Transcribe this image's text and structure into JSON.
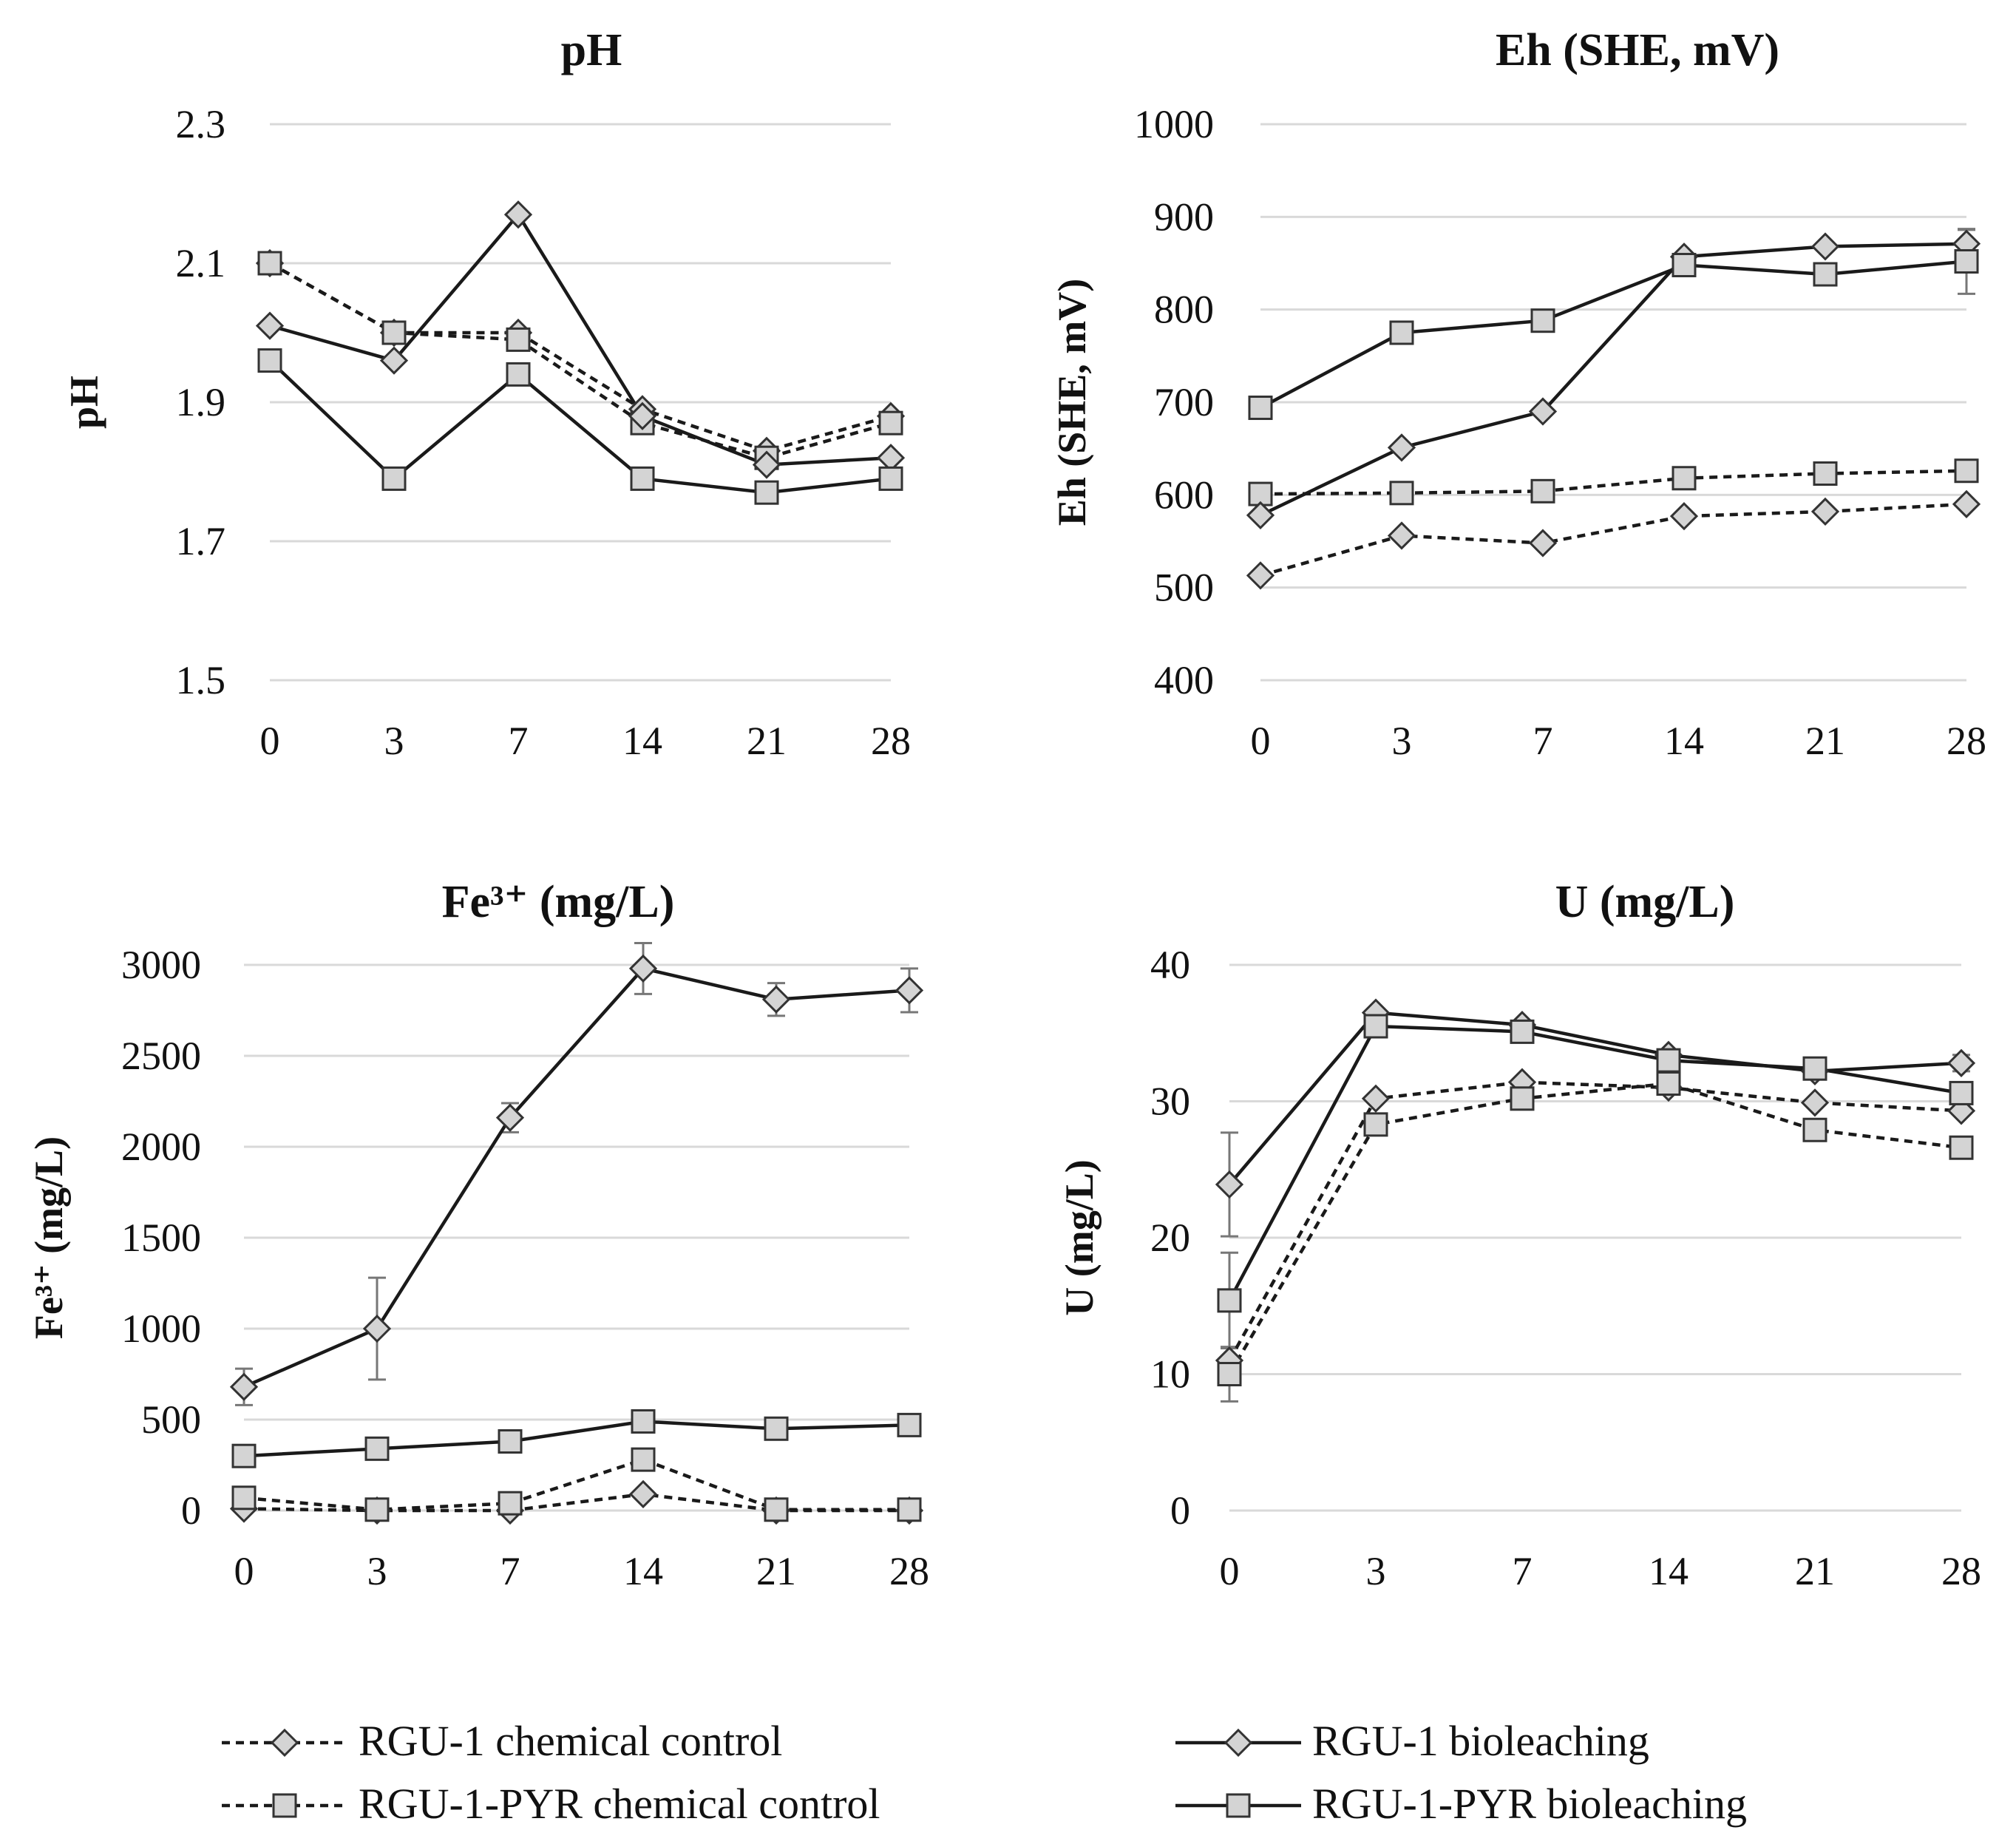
{
  "legend": [
    {
      "label": "RGU-1 chemical control",
      "line": "dashed",
      "marker": "diamond"
    },
    {
      "label": "RGU-1-PYR chemical control",
      "line": "dashed",
      "marker": "square"
    },
    {
      "label": "RGU-1 bioleaching",
      "line": "solid",
      "marker": "diamond"
    },
    {
      "label": "RGU-1-PYR bioleaching",
      "line": "solid",
      "marker": "square"
    }
  ],
  "chart_data": [
    {
      "type": "line",
      "title": "pH",
      "ylabel": "pH",
      "xlabel": "",
      "categories": [
        "0",
        "3",
        "7",
        "14",
        "21",
        "28"
      ],
      "ylim": [
        1.5,
        2.3
      ],
      "yticks": [
        "1.5",
        "1.7",
        "1.9",
        "2.1",
        "2.3"
      ],
      "grid": true,
      "series": [
        {
          "name": "RGU-1 chemical control",
          "values": [
            2.1,
            2.0,
            2.0,
            1.89,
            1.83,
            1.88
          ]
        },
        {
          "name": "RGU-1-PYR chemical control",
          "values": [
            2.1,
            2.0,
            1.99,
            1.87,
            1.82,
            1.87
          ]
        },
        {
          "name": "RGU-1 bioleaching",
          "values": [
            2.01,
            1.96,
            2.17,
            1.88,
            1.81,
            1.82
          ]
        },
        {
          "name": "RGU-1-PYR bioleaching",
          "values": [
            1.96,
            1.79,
            1.94,
            1.79,
            1.77,
            1.79
          ]
        }
      ]
    },
    {
      "type": "line",
      "title": "Eh (SHE, mV)",
      "ylabel": "Eh (SHE, mV)",
      "xlabel": "",
      "categories": [
        "0",
        "3",
        "7",
        "14",
        "21",
        "28"
      ],
      "ylim": [
        400,
        1000
      ],
      "yticks": [
        "400",
        "500",
        "600",
        "700",
        "800",
        "900",
        "1000"
      ],
      "grid": true,
      "series": [
        {
          "name": "RGU-1 chemical control",
          "values": [
            513,
            556,
            548,
            577,
            582,
            590
          ]
        },
        {
          "name": "RGU-1-PYR chemical control",
          "values": [
            601,
            602,
            604,
            618,
            623,
            626
          ]
        },
        {
          "name": "RGU-1 bioleaching",
          "values": [
            578,
            651,
            690,
            857,
            868,
            871
          ],
          "error": [
            0,
            0,
            0,
            0,
            0,
            15
          ]
        },
        {
          "name": "RGU-1-PYR bioleaching",
          "values": [
            694,
            775,
            788,
            848,
            838,
            852
          ],
          "error": [
            0,
            0,
            0,
            0,
            0,
            35
          ]
        }
      ]
    },
    {
      "type": "line",
      "title": "Fe³⁺ (mg/L)",
      "ylabel": "Fe³⁺ (mg/L)",
      "xlabel": "",
      "categories": [
        "0",
        "3",
        "7",
        "14",
        "21",
        "28"
      ],
      "ylim": [
        0,
        3000
      ],
      "yticks": [
        "0",
        "500",
        "1000",
        "1500",
        "2000",
        "2500",
        "3000"
      ],
      "grid": true,
      "series": [
        {
          "name": "RGU-1 chemical control",
          "values": [
            10,
            0,
            0,
            90,
            0,
            0
          ]
        },
        {
          "name": "RGU-1-PYR chemical control",
          "values": [
            70,
            5,
            40,
            280,
            5,
            5
          ]
        },
        {
          "name": "RGU-1 bioleaching",
          "values": [
            680,
            1000,
            2160,
            2980,
            2810,
            2860
          ],
          "error": [
            100,
            280,
            80,
            140,
            90,
            120
          ]
        },
        {
          "name": "RGU-1-PYR bioleaching",
          "values": [
            300,
            340,
            380,
            490,
            450,
            470
          ]
        }
      ]
    },
    {
      "type": "line",
      "title": "U (mg/L)",
      "ylabel": "U (mg/L)",
      "xlabel": "",
      "categories": [
        "0",
        "3",
        "7",
        "14",
        "21",
        "28"
      ],
      "ylim": [
        0,
        40
      ],
      "yticks": [
        "0",
        "10",
        "20",
        "30",
        "40"
      ],
      "grid": true,
      "series": [
        {
          "name": "RGU-1 chemical control",
          "values": [
            11,
            30.2,
            31.4,
            31.0,
            29.9,
            29.3
          ]
        },
        {
          "name": "RGU-1-PYR chemical control",
          "values": [
            10,
            28.3,
            30.2,
            31.3,
            27.9,
            26.6
          ],
          "error": [
            2,
            0,
            0,
            0,
            0,
            0
          ]
        },
        {
          "name": "RGU-1 bioleaching",
          "values": [
            23.9,
            36.5,
            35.6,
            33.4,
            32.2,
            32.8
          ],
          "error": [
            3.8,
            0,
            0,
            0,
            0,
            0.6
          ]
        },
        {
          "name": "RGU-1-PYR bioleaching",
          "values": [
            15.4,
            35.5,
            35.1,
            33.0,
            32.4,
            30.6
          ],
          "error": [
            3.5,
            0,
            0,
            0,
            0,
            0
          ]
        }
      ]
    }
  ]
}
